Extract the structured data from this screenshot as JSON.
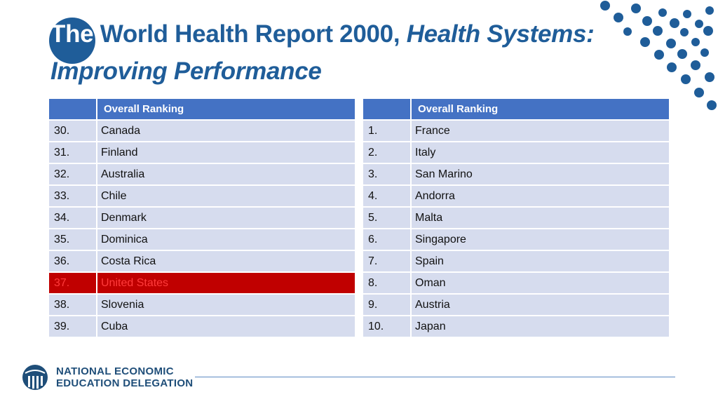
{
  "title": {
    "prefix": "The",
    "main": " World Health Report 2000, ",
    "italic1": "Health Systems:",
    "italic2": "Improving Performance"
  },
  "left_table": {
    "header": "Overall Ranking",
    "rows": [
      {
        "rank": "30.",
        "country": "Canada"
      },
      {
        "rank": "31.",
        "country": "Finland"
      },
      {
        "rank": "32.",
        "country": "Australia"
      },
      {
        "rank": "33.",
        "country": "Chile"
      },
      {
        "rank": "34.",
        "country": "Denmark"
      },
      {
        "rank": "35.",
        "country": "Dominica"
      },
      {
        "rank": "36.",
        "country": "Costa Rica"
      },
      {
        "rank": "37.",
        "country": "United States"
      },
      {
        "rank": "38.",
        "country": "Slovenia"
      },
      {
        "rank": "39.",
        "country": "Cuba"
      }
    ]
  },
  "right_table": {
    "header": "Overall Ranking",
    "rows": [
      {
        "rank": "1.",
        "country": "France"
      },
      {
        "rank": "2.",
        "country": "Italy"
      },
      {
        "rank": "3.",
        "country": "San Marino"
      },
      {
        "rank": "4.",
        "country": "Andorra"
      },
      {
        "rank": "5.",
        "country": "Malta"
      },
      {
        "rank": "6.",
        "country": "Singapore"
      },
      {
        "rank": "7.",
        "country": "Spain"
      },
      {
        "rank": "8.",
        "country": "Oman"
      },
      {
        "rank": "9.",
        "country": "Austria"
      },
      {
        "rank": "10.",
        "country": "Japan"
      }
    ]
  },
  "footer": {
    "org_line1": "NATIONAL ECONOMIC",
    "org_line2": "EDUCATION DELEGATION",
    "logo_icon": "globe-icon"
  },
  "colors": {
    "brand_blue": "#1f5d99",
    "header_blue": "#4472c4",
    "row_fill": "#d6dcee",
    "highlight_red": "#c00000"
  }
}
